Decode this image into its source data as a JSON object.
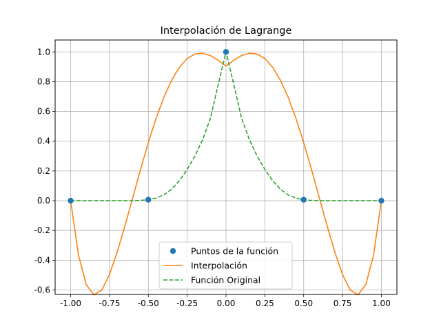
{
  "chart_data": {
    "type": "line",
    "title": "Interpolación de Lagrange",
    "xlabel": "",
    "ylabel": "",
    "xlim": [
      -1.1,
      1.1
    ],
    "ylim": [
      -0.63,
      1.08
    ],
    "grid": true,
    "legend_position": "lower-center",
    "x_ticks": [
      -1.0,
      -0.75,
      -0.5,
      -0.25,
      0.0,
      0.25,
      0.5,
      0.75,
      1.0
    ],
    "x_tick_labels": [
      "-1.00",
      "-0.75",
      "-0.50",
      "-0.25",
      "0.00",
      "0.25",
      "0.50",
      "0.75",
      "1.00"
    ],
    "y_ticks": [
      -0.6,
      -0.4,
      -0.2,
      0.0,
      0.2,
      0.4,
      0.6,
      0.8,
      1.0
    ],
    "y_tick_labels": [
      "-0.6",
      "-0.4",
      "-0.2",
      "0.0",
      "0.2",
      "0.4",
      "0.6",
      "0.8",
      "1.0"
    ],
    "series": [
      {
        "name": "Puntos de la función",
        "style": "markers",
        "color": "#1f77b4",
        "x": [
          -1.0,
          -0.5,
          0.0,
          0.5,
          1.0
        ],
        "y": [
          0.0,
          0.0067,
          1.0,
          0.0067,
          0.0
        ]
      },
      {
        "name": "Interpolación",
        "style": "solid",
        "color": "#ff7f0e",
        "x": [
          -1.0,
          -0.95,
          -0.9,
          -0.85,
          -0.8,
          -0.75,
          -0.7,
          -0.65,
          -0.6,
          -0.55,
          -0.5,
          -0.45,
          -0.4,
          -0.35,
          -0.3,
          -0.25,
          -0.2,
          -0.15,
          -0.1,
          -0.05,
          0.0,
          0.05,
          0.1,
          0.15,
          0.2,
          0.25,
          0.3,
          0.35,
          0.4,
          0.45,
          0.5,
          0.55,
          0.6,
          0.65,
          0.7,
          0.75,
          0.8,
          0.85,
          0.9,
          0.95,
          1.0
        ],
        "y": [
          0.0,
          -0.364,
          -0.564,
          -0.633,
          -0.601,
          -0.496,
          -0.344,
          -0.166,
          0.022,
          0.211,
          0.391,
          0.554,
          0.695,
          0.81,
          0.897,
          0.956,
          0.986,
          0.991,
          0.975,
          0.944,
          0.905,
          0.944,
          0.975,
          0.991,
          0.986,
          0.956,
          0.897,
          0.81,
          0.695,
          0.554,
          0.391,
          0.211,
          0.022,
          -0.166,
          -0.344,
          -0.496,
          -0.601,
          -0.633,
          -0.564,
          -0.364,
          0.0
        ]
      },
      {
        "name": "Función Original",
        "style": "dashed",
        "color": "#2ca02c",
        "x": [
          -1.0,
          -0.95,
          -0.9,
          -0.85,
          -0.8,
          -0.75,
          -0.7,
          -0.65,
          -0.6,
          -0.55,
          -0.5,
          -0.45,
          -0.4,
          -0.35,
          -0.3,
          -0.25,
          -0.2,
          -0.15,
          -0.1,
          -0.05,
          0.0,
          0.05,
          0.1,
          0.15,
          0.2,
          0.25,
          0.3,
          0.35,
          0.4,
          0.45,
          0.5,
          0.55,
          0.6,
          0.65,
          0.7,
          0.75,
          0.8,
          0.85,
          0.9,
          0.95,
          1.0
        ],
        "y": [
          0.0,
          0.0,
          0.0,
          0.0,
          0.0,
          0.0,
          0.0,
          0.0,
          0.0,
          0.002,
          0.007,
          0.018,
          0.039,
          0.077,
          0.135,
          0.21,
          0.301,
          0.411,
          0.555,
          0.782,
          1.0,
          0.782,
          0.555,
          0.411,
          0.301,
          0.21,
          0.135,
          0.077,
          0.039,
          0.018,
          0.007,
          0.002,
          0.0,
          0.0,
          0.0,
          0.0,
          0.0,
          0.0,
          0.0,
          0.0,
          0.0
        ]
      }
    ]
  }
}
